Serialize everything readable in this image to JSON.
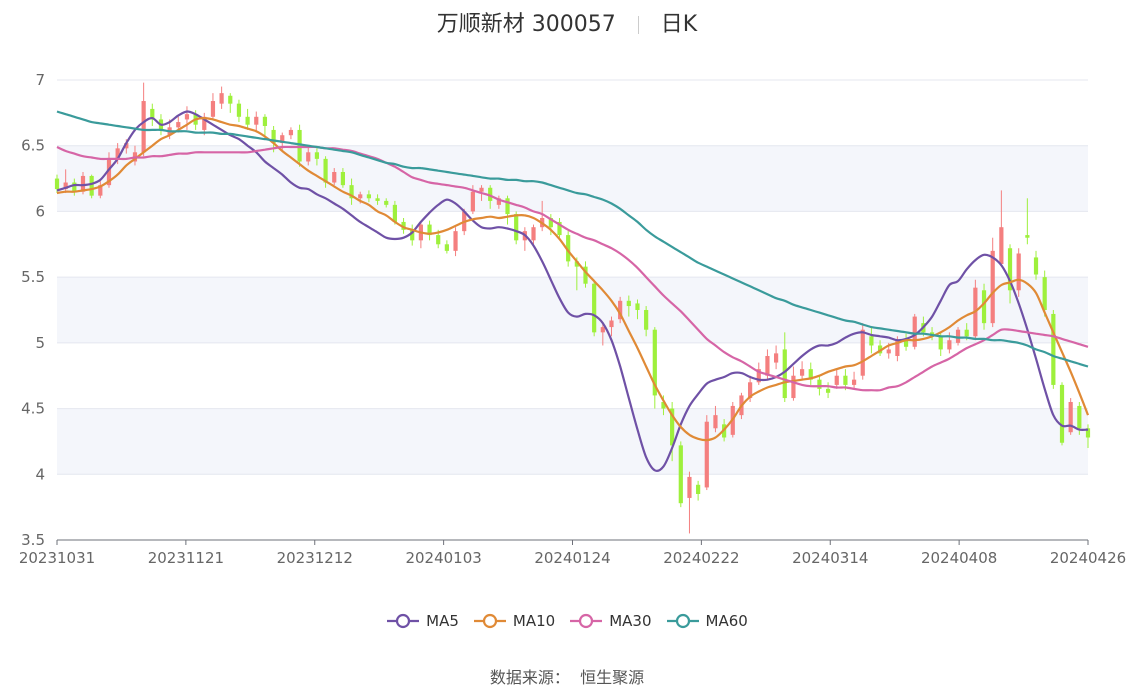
{
  "header": {
    "title": "万顺新材 300057",
    "period": "日K"
  },
  "source": {
    "label": "数据来源：",
    "name": "恒生聚源"
  },
  "chart_data": {
    "type": "candlestick",
    "y_ticks": [
      "7",
      "6.5",
      "6",
      "5.5",
      "5",
      "4.5",
      "4",
      "3.5"
    ],
    "ylim": [
      3.5,
      7
    ],
    "x_ticks": [
      "20231031",
      "20231121",
      "20231212",
      "20240103",
      "20240124",
      "20240222",
      "20240314",
      "20240408",
      "20240426"
    ],
    "n_days": 120,
    "up_color": "#f47f7f",
    "down_color": "#9ef03c",
    "grid": true,
    "legend_position": "bottom-center",
    "candles": [
      [
        6.25,
        6.17,
        6.28,
        6.14
      ],
      [
        6.17,
        6.22,
        6.32,
        6.14
      ],
      [
        6.22,
        6.15,
        6.25,
        6.12
      ],
      [
        6.15,
        6.27,
        6.3,
        6.13
      ],
      [
        6.27,
        6.12,
        6.28,
        6.1
      ],
      [
        6.12,
        6.2,
        6.23,
        6.1
      ],
      [
        6.2,
        6.4,
        6.45,
        6.18
      ],
      [
        6.4,
        6.48,
        6.52,
        6.36
      ],
      [
        6.48,
        6.52,
        6.55,
        6.44
      ],
      [
        6.38,
        6.45,
        6.5,
        6.35
      ],
      [
        6.45,
        6.84,
        6.98,
        6.42
      ],
      [
        6.78,
        6.7,
        6.82,
        6.65
      ],
      [
        6.7,
        6.62,
        6.74,
        6.58
      ],
      [
        6.58,
        6.64,
        6.7,
        6.55
      ],
      [
        6.64,
        6.68,
        6.72,
        6.6
      ],
      [
        6.7,
        6.74,
        6.8,
        6.62
      ],
      [
        6.74,
        6.66,
        6.77,
        6.62
      ],
      [
        6.62,
        6.72,
        6.75,
        6.58
      ],
      [
        6.72,
        6.84,
        6.9,
        6.7
      ],
      [
        6.82,
        6.9,
        6.95,
        6.78
      ],
      [
        6.88,
        6.82,
        6.9,
        6.75
      ],
      [
        6.82,
        6.72,
        6.85,
        6.68
      ],
      [
        6.72,
        6.66,
        6.78,
        6.62
      ],
      [
        6.66,
        6.72,
        6.76,
        6.6
      ],
      [
        6.72,
        6.65,
        6.74,
        6.55
      ],
      [
        6.62,
        6.52,
        6.65,
        6.45
      ],
      [
        6.52,
        6.58,
        6.6,
        6.46
      ],
      [
        6.58,
        6.62,
        6.64,
        6.55
      ],
      [
        6.62,
        6.38,
        6.66,
        6.34
      ],
      [
        6.38,
        6.45,
        6.5,
        6.35
      ],
      [
        6.45,
        6.4,
        6.48,
        6.35
      ],
      [
        6.4,
        6.22,
        6.42,
        6.18
      ],
      [
        6.22,
        6.3,
        6.33,
        6.2
      ],
      [
        6.3,
        6.2,
        6.33,
        6.18
      ],
      [
        6.2,
        6.1,
        6.25,
        6.05
      ],
      [
        6.1,
        6.13,
        6.15,
        6.06
      ],
      [
        6.13,
        6.1,
        6.16,
        6.07
      ],
      [
        6.1,
        6.08,
        6.13,
        6.05
      ],
      [
        6.08,
        6.05,
        6.1,
        6.03
      ],
      [
        6.05,
        5.92,
        6.08,
        5.9
      ],
      [
        5.92,
        5.86,
        5.95,
        5.83
      ],
      [
        5.86,
        5.78,
        5.9,
        5.74
      ],
      [
        5.78,
        5.9,
        5.92,
        5.72
      ],
      [
        5.9,
        5.82,
        5.93,
        5.78
      ],
      [
        5.82,
        5.75,
        5.86,
        5.72
      ],
      [
        5.75,
        5.7,
        5.78,
        5.68
      ],
      [
        5.7,
        5.85,
        5.88,
        5.66
      ],
      [
        5.85,
        6.0,
        6.02,
        5.82
      ],
      [
        6.0,
        6.15,
        6.2,
        5.98
      ],
      [
        6.15,
        6.18,
        6.2,
        6.08
      ],
      [
        6.18,
        6.08,
        6.2,
        6.02
      ],
      [
        6.05,
        6.1,
        6.12,
        6.02
      ],
      [
        6.1,
        5.98,
        6.12,
        5.9
      ],
      [
        5.98,
        5.78,
        6.0,
        5.75
      ],
      [
        5.78,
        5.85,
        5.88,
        5.7
      ],
      [
        5.78,
        5.88,
        5.9,
        5.75
      ],
      [
        5.88,
        5.95,
        6.08,
        5.85
      ],
      [
        5.95,
        5.88,
        5.98,
        5.82
      ],
      [
        5.92,
        5.82,
        5.95,
        5.8
      ],
      [
        5.82,
        5.62,
        5.85,
        5.58
      ],
      [
        5.62,
        5.58,
        5.65,
        5.4
      ],
      [
        5.58,
        5.45,
        5.62,
        5.42
      ],
      [
        5.45,
        5.08,
        5.48,
        5.05
      ],
      [
        5.08,
        5.12,
        5.15,
        4.98
      ],
      [
        5.12,
        5.17,
        5.2,
        5.05
      ],
      [
        5.18,
        5.32,
        5.35,
        5.15
      ],
      [
        5.32,
        5.28,
        5.36,
        5.2
      ],
      [
        5.3,
        5.25,
        5.33,
        5.18
      ],
      [
        5.25,
        5.1,
        5.28,
        5.05
      ],
      [
        5.1,
        4.6,
        5.12,
        4.5
      ],
      [
        4.55,
        4.5,
        4.6,
        4.45
      ],
      [
        4.5,
        4.22,
        4.55,
        4.1
      ],
      [
        4.22,
        3.78,
        4.25,
        3.75
      ],
      [
        3.82,
        3.98,
        4.02,
        3.55
      ],
      [
        3.92,
        3.85,
        3.95,
        3.8
      ],
      [
        3.9,
        4.4,
        4.45,
        3.88
      ],
      [
        4.35,
        4.45,
        4.52,
        4.32
      ],
      [
        4.38,
        4.28,
        4.42,
        4.25
      ],
      [
        4.3,
        4.52,
        4.55,
        4.28
      ],
      [
        4.45,
        4.6,
        4.62,
        4.42
      ],
      [
        4.58,
        4.7,
        4.75,
        4.55
      ],
      [
        4.7,
        4.8,
        4.85,
        4.68
      ],
      [
        4.75,
        4.9,
        4.95,
        4.72
      ],
      [
        4.85,
        4.92,
        4.98,
        4.8
      ],
      [
        4.95,
        4.58,
        5.08,
        4.55
      ],
      [
        4.58,
        4.75,
        4.82,
        4.56
      ],
      [
        4.75,
        4.8,
        4.86,
        4.72
      ],
      [
        4.8,
        4.72,
        4.85,
        4.68
      ],
      [
        4.72,
        4.65,
        4.75,
        4.6
      ],
      [
        4.65,
        4.62,
        4.7,
        4.58
      ],
      [
        4.68,
        4.75,
        4.8,
        4.65
      ],
      [
        4.75,
        4.68,
        4.8,
        4.64
      ],
      [
        4.68,
        4.72,
        4.78,
        4.65
      ],
      [
        4.75,
        5.1,
        5.15,
        4.72
      ],
      [
        5.05,
        4.98,
        5.12,
        4.92
      ],
      [
        4.98,
        4.92,
        5.02,
        4.9
      ],
      [
        4.92,
        4.95,
        5.0,
        4.88
      ],
      [
        4.9,
        5.02,
        5.05,
        4.86
      ],
      [
        5.02,
        4.97,
        5.07,
        4.94
      ],
      [
        4.97,
        5.2,
        5.22,
        4.95
      ],
      [
        5.15,
        5.08,
        5.2,
        5.05
      ],
      [
        5.08,
        5.05,
        5.12,
        5.02
      ],
      [
        5.05,
        4.95,
        5.08,
        4.9
      ],
      [
        4.95,
        5.02,
        5.08,
        4.92
      ],
      [
        5.0,
        5.1,
        5.12,
        4.98
      ],
      [
        5.1,
        5.05,
        5.15,
        5.02
      ],
      [
        5.05,
        5.42,
        5.48,
        5.02
      ],
      [
        5.4,
        5.15,
        5.45,
        5.1
      ],
      [
        5.15,
        5.7,
        5.8,
        5.12
      ],
      [
        5.6,
        5.88,
        6.16,
        5.58
      ],
      [
        5.72,
        5.4,
        5.75,
        5.3
      ],
      [
        5.4,
        5.68,
        5.72,
        5.35
      ],
      [
        5.82,
        5.8,
        6.1,
        5.75
      ],
      [
        5.65,
        5.52,
        5.7,
        5.48
      ],
      [
        5.5,
        5.25,
        5.55,
        5.2
      ],
      [
        5.22,
        4.68,
        5.25,
        4.65
      ],
      [
        4.68,
        4.24,
        4.7,
        4.22
      ],
      [
        4.32,
        4.55,
        4.58,
        4.3
      ],
      [
        4.52,
        4.35,
        4.55,
        4.3
      ],
      [
        4.35,
        4.28,
        4.38,
        4.2
      ]
    ],
    "series": [
      {
        "name": "MA5",
        "color": "#6f51a6",
        "values": [
          6.16,
          6.18,
          6.2,
          6.2,
          6.21,
          6.24,
          6.32,
          6.4,
          6.52,
          6.62,
          6.68,
          6.71,
          6.66,
          6.68,
          6.73,
          6.76,
          6.74,
          6.7,
          6.66,
          6.62,
          6.58,
          6.55,
          6.5,
          6.45,
          6.38,
          6.33,
          6.28,
          6.22,
          6.18,
          6.17,
          6.13,
          6.1,
          6.06,
          6.02,
          5.97,
          5.92,
          5.88,
          5.84,
          5.8,
          5.79,
          5.8,
          5.84,
          5.92,
          5.99,
          6.05,
          6.09,
          6.06,
          6.0,
          5.93,
          5.88,
          5.87,
          5.88,
          5.87,
          5.85,
          5.82,
          5.74,
          5.62,
          5.48,
          5.34,
          5.23,
          5.2,
          5.22,
          5.21,
          5.15,
          5.02,
          4.82,
          4.58,
          4.34,
          4.13,
          4.03,
          4.06,
          4.2,
          4.38,
          4.52,
          4.61,
          4.69,
          4.72,
          4.74,
          4.77,
          4.77,
          4.74,
          4.72,
          4.72,
          4.74,
          4.78,
          4.84,
          4.9,
          4.95,
          4.98,
          4.98,
          5.0,
          5.04,
          5.07,
          5.08,
          5.06,
          5.05,
          5.04,
          5.02,
          5.03,
          5.06,
          5.12,
          5.2,
          5.32,
          5.44,
          5.47,
          5.56,
          5.63,
          5.67,
          5.65,
          5.59,
          5.47,
          5.3,
          5.1,
          4.88,
          4.65,
          4.45,
          4.37,
          4.37,
          4.34,
          4.34
        ]
      },
      {
        "name": "MA10",
        "color": "#e08a36",
        "values": [
          6.14,
          6.15,
          6.15,
          6.16,
          6.17,
          6.19,
          6.23,
          6.28,
          6.35,
          6.4,
          6.45,
          6.5,
          6.55,
          6.58,
          6.62,
          6.66,
          6.7,
          6.71,
          6.7,
          6.68,
          6.66,
          6.65,
          6.63,
          6.61,
          6.57,
          6.52,
          6.46,
          6.41,
          6.36,
          6.31,
          6.27,
          6.23,
          6.19,
          6.15,
          6.12,
          6.08,
          6.05,
          6.0,
          5.97,
          5.92,
          5.88,
          5.86,
          5.84,
          5.83,
          5.84,
          5.86,
          5.89,
          5.92,
          5.94,
          5.95,
          5.96,
          5.95,
          5.96,
          5.97,
          5.97,
          5.95,
          5.91,
          5.86,
          5.79,
          5.7,
          5.62,
          5.54,
          5.47,
          5.4,
          5.32,
          5.22,
          5.09,
          4.96,
          4.82,
          4.68,
          4.56,
          4.45,
          4.36,
          4.3,
          4.27,
          4.26,
          4.28,
          4.34,
          4.42,
          4.52,
          4.59,
          4.63,
          4.66,
          4.68,
          4.7,
          4.71,
          4.72,
          4.73,
          4.75,
          4.78,
          4.8,
          4.82,
          4.83,
          4.86,
          4.9,
          4.94,
          4.98,
          5.0,
          5.02,
          5.02,
          5.03,
          5.05,
          5.08,
          5.12,
          5.17,
          5.21,
          5.24,
          5.3,
          5.38,
          5.44,
          5.46,
          5.48,
          5.45,
          5.38,
          5.23,
          5.08,
          4.93,
          4.78,
          4.62,
          4.45
        ]
      },
      {
        "name": "MA30",
        "color": "#d665a6",
        "values": [
          6.49,
          6.46,
          6.44,
          6.42,
          6.41,
          6.4,
          6.4,
          6.4,
          6.4,
          6.41,
          6.41,
          6.42,
          6.42,
          6.43,
          6.44,
          6.44,
          6.45,
          6.45,
          6.45,
          6.45,
          6.45,
          6.45,
          6.45,
          6.46,
          6.47,
          6.48,
          6.49,
          6.49,
          6.49,
          6.49,
          6.49,
          6.48,
          6.48,
          6.47,
          6.46,
          6.44,
          6.42,
          6.4,
          6.37,
          6.34,
          6.3,
          6.26,
          6.24,
          6.22,
          6.21,
          6.2,
          6.19,
          6.18,
          6.16,
          6.14,
          6.12,
          6.09,
          6.07,
          6.05,
          6.03,
          6.0,
          5.98,
          5.94,
          5.9,
          5.86,
          5.83,
          5.8,
          5.78,
          5.75,
          5.72,
          5.68,
          5.63,
          5.57,
          5.5,
          5.43,
          5.36,
          5.3,
          5.24,
          5.17,
          5.1,
          5.03,
          4.98,
          4.93,
          4.89,
          4.86,
          4.82,
          4.78,
          4.76,
          4.74,
          4.72,
          4.7,
          4.68,
          4.67,
          4.67,
          4.67,
          4.66,
          4.66,
          4.65,
          4.64,
          4.64,
          4.64,
          4.66,
          4.67,
          4.7,
          4.74,
          4.78,
          4.82,
          4.85,
          4.88,
          4.92,
          4.96,
          4.99,
          5.02,
          5.06,
          5.1,
          5.1,
          5.09,
          5.08,
          5.07,
          5.06,
          5.05,
          5.03,
          5.01,
          4.99,
          4.97
        ]
      },
      {
        "name": "MA60",
        "color": "#3a9b9b",
        "values": [
          6.76,
          6.74,
          6.72,
          6.7,
          6.68,
          6.67,
          6.66,
          6.65,
          6.64,
          6.63,
          6.62,
          6.62,
          6.62,
          6.61,
          6.61,
          6.61,
          6.6,
          6.6,
          6.6,
          6.59,
          6.59,
          6.58,
          6.57,
          6.56,
          6.55,
          6.54,
          6.53,
          6.52,
          6.51,
          6.5,
          6.49,
          6.48,
          6.47,
          6.46,
          6.45,
          6.43,
          6.41,
          6.39,
          6.37,
          6.36,
          6.34,
          6.33,
          6.33,
          6.32,
          6.31,
          6.3,
          6.29,
          6.28,
          6.27,
          6.26,
          6.25,
          6.25,
          6.24,
          6.24,
          6.23,
          6.23,
          6.22,
          6.2,
          6.18,
          6.16,
          6.14,
          6.13,
          6.11,
          6.09,
          6.06,
          6.02,
          5.97,
          5.92,
          5.86,
          5.81,
          5.77,
          5.73,
          5.69,
          5.65,
          5.61,
          5.58,
          5.55,
          5.52,
          5.49,
          5.46,
          5.43,
          5.4,
          5.37,
          5.34,
          5.32,
          5.29,
          5.27,
          5.25,
          5.23,
          5.21,
          5.19,
          5.17,
          5.16,
          5.14,
          5.12,
          5.11,
          5.1,
          5.09,
          5.08,
          5.07,
          5.07,
          5.06,
          5.05,
          5.05,
          5.04,
          5.04,
          5.03,
          5.03,
          5.02,
          5.02,
          5.01,
          5.0,
          4.98,
          4.95,
          4.93,
          4.9,
          4.88,
          4.86,
          4.84,
          4.82
        ]
      }
    ]
  }
}
